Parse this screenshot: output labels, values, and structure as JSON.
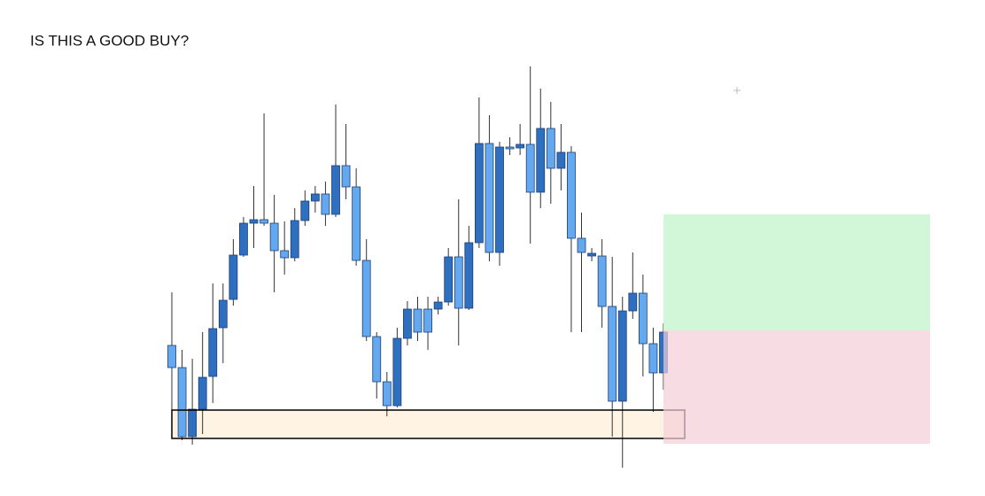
{
  "chart_data": {
    "type": "candlestick",
    "title": "IS THIS A GOOD BUY?",
    "ylim": [
      0,
      560
    ],
    "up_color": "#2f6fc0",
    "down_color": "#64a8ef",
    "edge_color": "#1d3f73",
    "open": [
      170,
      145,
      67,
      98,
      135,
      190,
      222,
      272,
      308,
      312,
      308,
      277,
      269,
      311,
      333,
      341,
      318,
      373,
      349,
      266,
      180,
      129,
      102,
      178,
      211,
      211,
      211,
      219,
      270,
      212,
      286,
      398,
      275,
      394,
      393,
      397,
      343,
      415,
      370,
      388,
      291,
      271,
      271,
      214,
      107,
      209,
      229,
      172,
      139
    ],
    "high": [
      230,
      165,
      155,
      185,
      240,
      240,
      290,
      315,
      350,
      432,
      340,
      310,
      325,
      345,
      350,
      355,
      442,
      420,
      370,
      290,
      185,
      140,
      190,
      220,
      225,
      225,
      225,
      280,
      335,
      305,
      450,
      430,
      400,
      405,
      420,
      485,
      460,
      445,
      420,
      395,
      320,
      280,
      290,
      270,
      225,
      275,
      250,
      190,
      195
    ],
    "low": [
      65,
      63,
      58,
      70,
      105,
      150,
      215,
      270,
      280,
      305,
      230,
      250,
      265,
      305,
      320,
      305,
      315,
      335,
      260,
      175,
      110,
      90,
      100,
      170,
      175,
      165,
      205,
      215,
      170,
      210,
      280,
      265,
      260,
      385,
      385,
      285,
      325,
      330,
      345,
      185,
      185,
      265,
      190,
      67,
      32,
      200,
      135,
      95,
      120
    ],
    "close": [
      145,
      67,
      98,
      134,
      189,
      221,
      272,
      308,
      312,
      308,
      277,
      269,
      311,
      333,
      341,
      318,
      373,
      349,
      266,
      180,
      129,
      102,
      178,
      211,
      185,
      185,
      219,
      270,
      212,
      286,
      398,
      275,
      394,
      392,
      397,
      343,
      415,
      370,
      388,
      291,
      275,
      274,
      214,
      107,
      209,
      229,
      172,
      139,
      185
    ],
    "support_zone": [
      65,
      97
    ],
    "support_color": "#fff4e4",
    "target_zone": [
      187,
      318
    ],
    "target_color": "#cff5d6",
    "stop_zone": [
      59,
      187
    ],
    "stop_color": "#f5cdd9"
  }
}
